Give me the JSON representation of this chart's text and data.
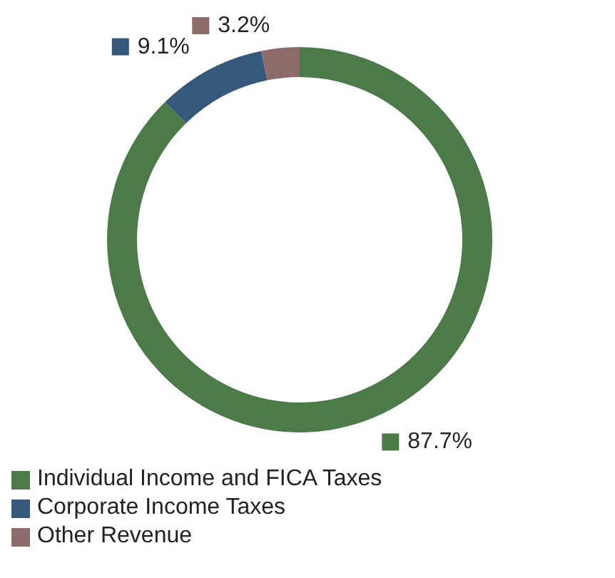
{
  "chart_data": {
    "type": "donut",
    "categories": [
      "Individual Income and FICA Taxes",
      "Corporate Income Taxes",
      "Other Revenue"
    ],
    "values": [
      87.7,
      9.1,
      3.2
    ],
    "colors": [
      "#4c7a49",
      "#36597b",
      "#8e6b6b"
    ],
    "value_labels": [
      "87.7%",
      "9.1%",
      "3.2%"
    ],
    "legend": "bottom left"
  }
}
